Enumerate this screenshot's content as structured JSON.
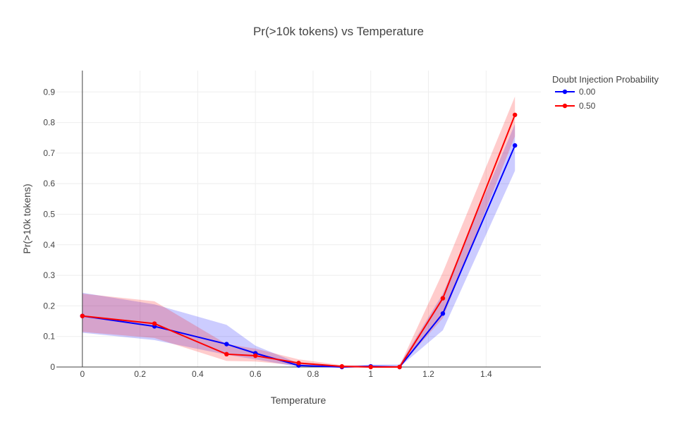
{
  "chart_data": {
    "type": "line",
    "title": "Pr(>10k tokens) vs Temperature",
    "xlabel": "Temperature",
    "ylabel": "Pr(>10k tokens)",
    "xlim": [
      -0.09,
      1.59
    ],
    "ylim": [
      0,
      0.97
    ],
    "xticks": [
      0,
      0.2,
      0.4,
      0.6,
      0.8,
      1,
      1.2,
      1.4
    ],
    "xtick_labels": [
      "0",
      "0.2",
      "0.4",
      "0.6",
      "0.8",
      "1",
      "1.2",
      "1.4"
    ],
    "yticks": [
      0,
      0.1,
      0.2,
      0.3,
      0.4,
      0.5,
      0.6,
      0.7,
      0.8,
      0.9
    ],
    "ytick_labels": [
      "0",
      "0.1",
      "0.2",
      "0.3",
      "0.4",
      "0.5",
      "0.6",
      "0.7",
      "0.8",
      "0.9"
    ],
    "grid": true,
    "legend": {
      "title": "Doubt Injection Probability",
      "position": "top-right"
    },
    "x": [
      0,
      0.25,
      0.5,
      0.6,
      0.75,
      0.9,
      1.0,
      1.1,
      1.25,
      1.5
    ],
    "series": [
      {
        "name": "0.00",
        "color": "#0000ff",
        "band_color": "rgba(0,0,255,0.2)",
        "values": [
          0.167,
          0.133,
          0.075,
          0.045,
          0.005,
          0.0,
          0.002,
          0.0,
          0.175,
          0.725
        ],
        "lower": [
          0.112,
          0.088,
          0.04,
          0.025,
          0.0,
          0.0,
          0.0,
          0.0,
          0.12,
          0.642
        ],
        "upper": [
          0.243,
          0.205,
          0.138,
          0.07,
          0.012,
          0.003,
          0.008,
          0.008,
          0.24,
          0.795
        ]
      },
      {
        "name": "0.50",
        "color": "#ff0000",
        "band_color": "rgba(255,0,0,0.2)",
        "values": [
          0.167,
          0.142,
          0.042,
          0.037,
          0.013,
          0.002,
          0.0,
          0.0,
          0.225,
          0.825
        ],
        "lower": [
          0.115,
          0.095,
          0.02,
          0.018,
          0.005,
          0.0,
          0.0,
          0.0,
          0.16,
          0.755
        ],
        "upper": [
          0.24,
          0.215,
          0.075,
          0.06,
          0.025,
          0.006,
          0.004,
          0.004,
          0.31,
          0.885
        ]
      }
    ]
  }
}
